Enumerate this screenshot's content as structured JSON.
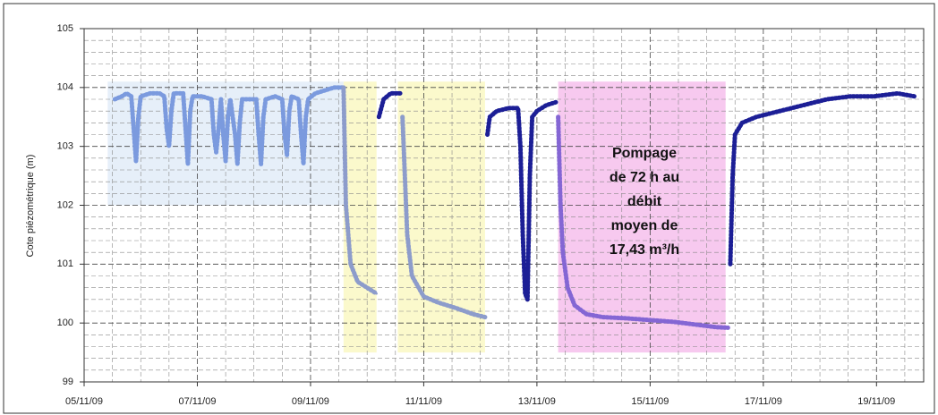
{
  "chart_data": {
    "type": "line",
    "ylabel": "Cote piézométrique (m)",
    "ylim": [
      99,
      105
    ],
    "yticks": [
      99,
      100,
      101,
      102,
      103,
      104,
      105
    ],
    "xlim": [
      "2009-11-05T00:00",
      "2009-11-19T20:00"
    ],
    "xticks": [
      {
        "value": "2009-11-05T00:00",
        "label": "05/11/09"
      },
      {
        "value": "2009-11-07T00:00",
        "label": "07/11/09"
      },
      {
        "value": "2009-11-09T00:00",
        "label": "09/11/09"
      },
      {
        "value": "2009-11-11T00:00",
        "label": "11/11/09"
      },
      {
        "value": "2009-11-13T00:00",
        "label": "13/11/09"
      },
      {
        "value": "2009-11-15T00:00",
        "label": "15/11/09"
      },
      {
        "value": "2009-11-17T00:00",
        "label": "17/11/09"
      },
      {
        "value": "2009-11-19T00:00",
        "label": "19/11/09"
      }
    ],
    "grid": true,
    "shaded_regions": [
      {
        "x": [
          "2009-11-05T10:00",
          "2009-11-09T14:00"
        ],
        "y": [
          102,
          104.1
        ],
        "color": "#e6eff9"
      },
      {
        "x": [
          "2009-11-09T14:00",
          "2009-11-10T04:00"
        ],
        "y": [
          99.5,
          104.1
        ],
        "color": "#fbf9cc"
      },
      {
        "x": [
          "2009-11-10T13:00",
          "2009-11-12T02:00"
        ],
        "y": [
          99.5,
          104.1
        ],
        "color": "#fbf9cc"
      },
      {
        "x": [
          "2009-11-13T09:00",
          "2009-11-16T08:00"
        ],
        "y": [
          99.5,
          104.1
        ],
        "color": "#f7c9ef"
      }
    ],
    "annotation": [
      "Pompage",
      "de 72 h au",
      "débit",
      "moyen de",
      "17,43 m³/h"
    ],
    "series": [
      {
        "color": "#7b9ade",
        "x": [
          "2009-11-05T13:00",
          "2009-11-05T16:00",
          "2009-11-05T18:00",
          "2009-11-05T20:00",
          "2009-11-05T21:00",
          "2009-11-05T22:00",
          "2009-11-05T23:00",
          "2009-11-06T00:00",
          "2009-11-06T04:00",
          "2009-11-06T08:00",
          "2009-11-06T10:00",
          "2009-11-06T11:00",
          "2009-11-06T12:00",
          "2009-11-06T13:00",
          "2009-11-06T14:00",
          "2009-11-06T18:00",
          "2009-11-06T19:00",
          "2009-11-06T20:00",
          "2009-11-06T21:00",
          "2009-11-06T22:00",
          "2009-11-07T02:00",
          "2009-11-07T06:00",
          "2009-11-07T07:00",
          "2009-11-07T08:00",
          "2009-11-07T09:00",
          "2009-11-07T10:00",
          "2009-11-07T11:00",
          "2009-11-07T12:00",
          "2009-11-07T13:00",
          "2009-11-07T14:00",
          "2009-11-07T16:00",
          "2009-11-07T17:00",
          "2009-11-07T18:00",
          "2009-11-07T19:00",
          "2009-11-07T22:00",
          "2009-11-08T01:00",
          "2009-11-08T02:00",
          "2009-11-08T03:00",
          "2009-11-08T04:00",
          "2009-11-08T05:00",
          "2009-11-08T09:00",
          "2009-11-08T12:00",
          "2009-11-08T13:00",
          "2009-11-08T14:00",
          "2009-11-08T15:00",
          "2009-11-08T16:00",
          "2009-11-08T19:00",
          "2009-11-08T20:00",
          "2009-11-08T21:00",
          "2009-11-08T22:00",
          "2009-11-08T23:00",
          "2009-11-09T02:00",
          "2009-11-09T06:00",
          "2009-11-09T10:00",
          "2009-11-09T14:00"
        ],
        "values": [
          103.8,
          103.85,
          103.9,
          103.85,
          103.3,
          102.75,
          103.5,
          103.85,
          103.9,
          103.9,
          103.85,
          103.3,
          103.0,
          103.6,
          103.9,
          103.9,
          103.3,
          102.7,
          103.6,
          103.85,
          103.85,
          103.8,
          103.2,
          102.9,
          103.3,
          103.8,
          103.2,
          102.75,
          103.5,
          103.8,
          103.2,
          102.7,
          103.4,
          103.8,
          103.8,
          103.8,
          103.2,
          102.7,
          103.5,
          103.8,
          103.85,
          103.8,
          103.2,
          102.85,
          103.6,
          103.85,
          103.8,
          103.2,
          102.7,
          103.5,
          103.8,
          103.9,
          103.95,
          104.0,
          104.0
        ]
      },
      {
        "color": "#8d9ccb",
        "x": [
          "2009-11-09T14:00",
          "2009-11-09T15:00",
          "2009-11-09T17:00",
          "2009-11-09T20:00",
          "2009-11-10T00:00",
          "2009-11-10T04:00"
        ],
        "values": [
          104.0,
          102.0,
          101.0,
          100.7,
          100.6,
          100.5
        ]
      },
      {
        "color": "#1c1f96",
        "x": [
          "2009-11-10T05:00",
          "2009-11-10T07:00",
          "2009-11-10T10:00",
          "2009-11-10T14:00"
        ],
        "values": [
          103.5,
          103.8,
          103.9,
          103.9
        ]
      },
      {
        "color": "#8d9ccb",
        "x": [
          "2009-11-10T15:00",
          "2009-11-10T16:00",
          "2009-11-10T17:00",
          "2009-11-10T19:00",
          "2009-11-11T00:00",
          "2009-11-11T06:00",
          "2009-11-11T14:00",
          "2009-11-11T21:00",
          "2009-11-12T02:00"
        ],
        "values": [
          103.5,
          102.5,
          101.5,
          100.8,
          100.45,
          100.35,
          100.25,
          100.15,
          100.1
        ]
      },
      {
        "color": "#1c1f96",
        "x": [
          "2009-11-12T03:00",
          "2009-11-12T04:00",
          "2009-11-12T07:00",
          "2009-11-12T12:00",
          "2009-11-12T16:00",
          "2009-11-12T17:00",
          "2009-11-12T18:00",
          "2009-11-12T19:00",
          "2009-11-12T20:00",
          "2009-11-12T21:00",
          "2009-11-12T22:00",
          "2009-11-13T00:00",
          "2009-11-13T04:00",
          "2009-11-13T08:00"
        ],
        "values": [
          103.2,
          103.5,
          103.6,
          103.65,
          103.65,
          103.0,
          101.5,
          100.5,
          100.4,
          102.5,
          103.5,
          103.6,
          103.7,
          103.75
        ]
      },
      {
        "color": "#8466d4",
        "x": [
          "2009-11-13T09:00",
          "2009-11-13T10:00",
          "2009-11-13T11:00",
          "2009-11-13T13:00",
          "2009-11-13T16:00",
          "2009-11-13T21:00",
          "2009-11-14T04:00",
          "2009-11-14T14:00",
          "2009-11-15T00:00",
          "2009-11-15T10:00",
          "2009-11-15T20:00",
          "2009-11-16T04:00",
          "2009-11-16T09:00"
        ],
        "values": [
          103.5,
          102.0,
          101.2,
          100.6,
          100.3,
          100.15,
          100.1,
          100.08,
          100.05,
          100.02,
          99.97,
          99.93,
          99.92
        ]
      },
      {
        "color": "#1c1f96",
        "x": [
          "2009-11-16T10:00",
          "2009-11-16T11:00",
          "2009-11-16T12:00",
          "2009-11-16T15:00",
          "2009-11-16T21:00",
          "2009-11-17T07:00",
          "2009-11-17T17:00",
          "2009-11-18T03:00",
          "2009-11-18T13:00",
          "2009-11-18T23:00",
          "2009-11-19T09:00",
          "2009-11-19T16:00"
        ],
        "values": [
          101.0,
          102.5,
          103.2,
          103.4,
          103.5,
          103.6,
          103.7,
          103.8,
          103.85,
          103.85,
          103.9,
          103.85
        ]
      }
    ]
  }
}
